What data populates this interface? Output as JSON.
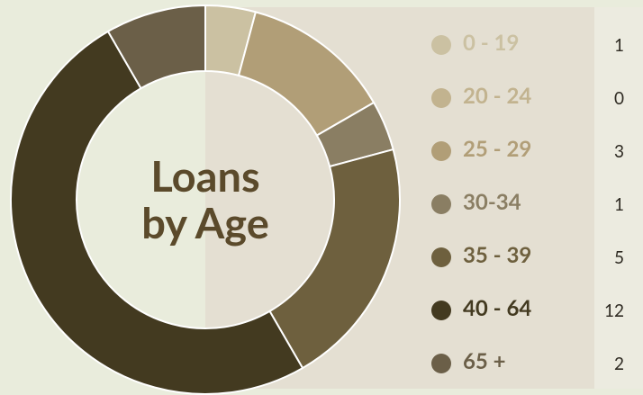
{
  "chart_data": {
    "type": "donut",
    "title": "Loans by Age",
    "categories": [
      "0 - 19",
      "20 - 24",
      "25 - 29",
      "30-34",
      "35 - 39",
      "40 - 64",
      "65 +"
    ],
    "values": [
      1,
      0,
      3,
      1,
      5,
      12,
      2
    ],
    "colors": [
      "#cbc1a2",
      "#c2b38f",
      "#b19e77",
      "#8a7e63",
      "#6e603e",
      "#433a20",
      "#6b5f48"
    ]
  }
}
